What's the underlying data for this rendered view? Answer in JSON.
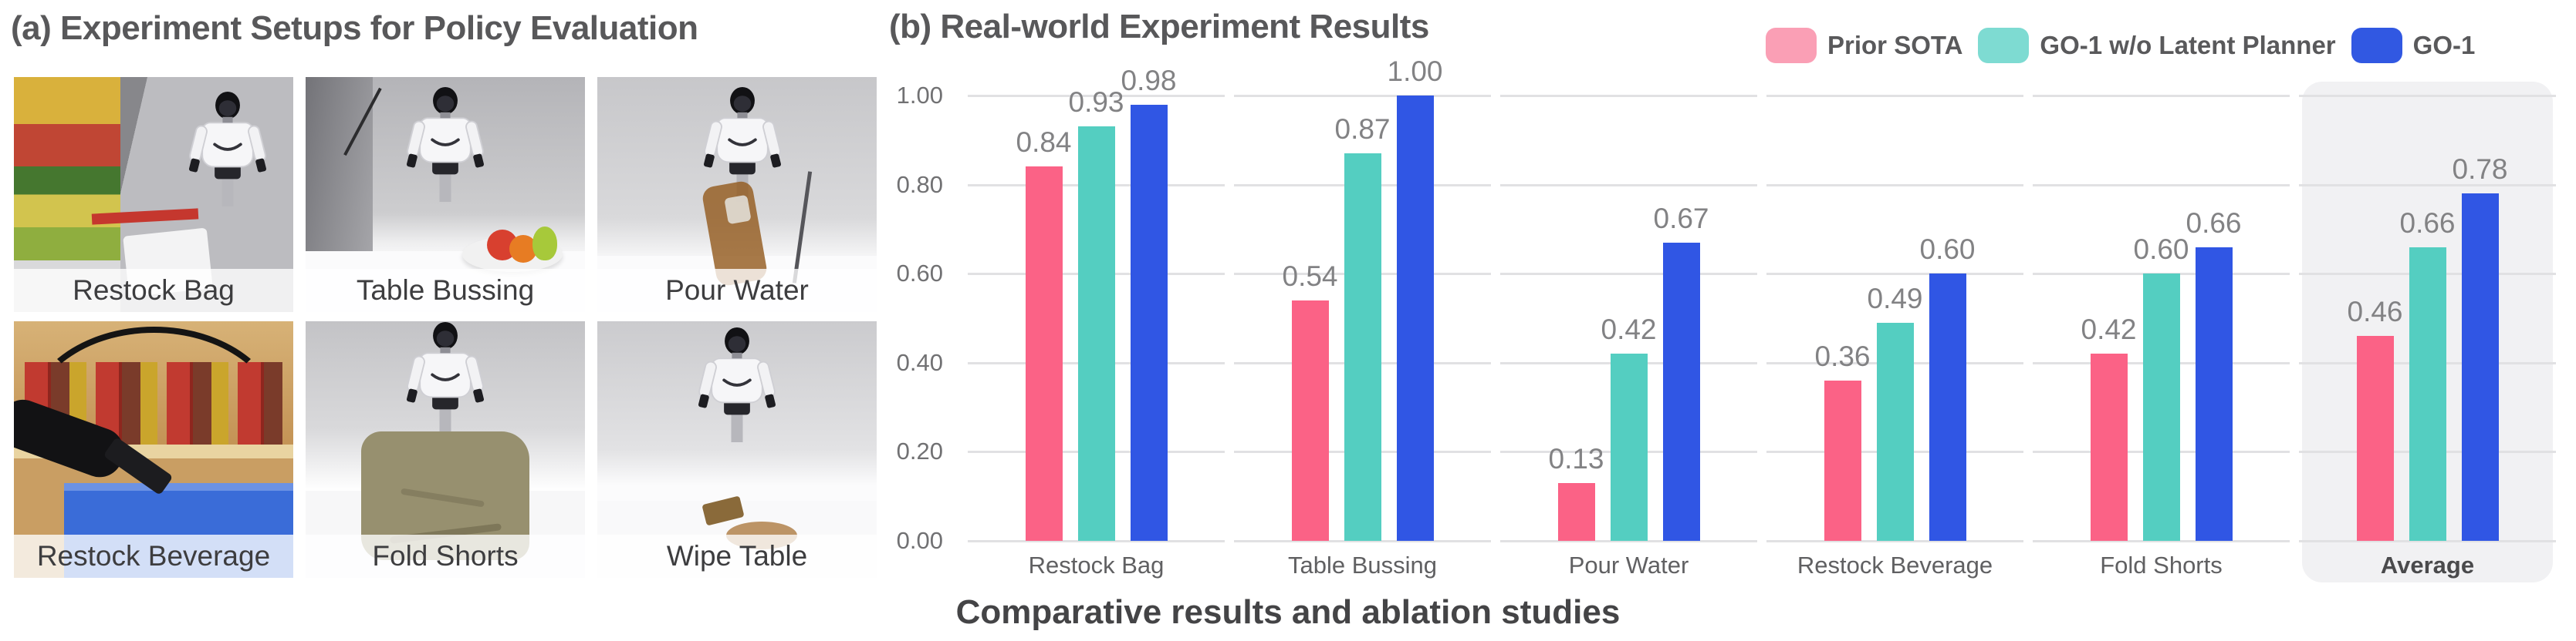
{
  "panel_a": {
    "title": "(a) Experiment Setups for Policy Evaluation",
    "setups": [
      {
        "label": "Restock Bag"
      },
      {
        "label": "Table Bussing"
      },
      {
        "label": "Pour Water"
      },
      {
        "label": "Restock Beverage"
      },
      {
        "label": "Fold Shorts"
      },
      {
        "label": "Wipe Table"
      }
    ]
  },
  "panel_b": {
    "title": "(b) Real-world Experiment Results",
    "caption": "Comparative results and ablation studies",
    "legend": [
      {
        "label": "Prior SOTA",
        "swatch_color": "#FA9FB5"
      },
      {
        "label": "GO-1 w/o Latent Planner",
        "swatch_color": "#7EDBD2"
      },
      {
        "label": "GO-1",
        "swatch_color": "#3158E2"
      }
    ]
  },
  "chart_data": {
    "type": "bar",
    "title": "(b) Real-world Experiment Results",
    "categories": [
      "Restock Bag",
      "Table Bussing",
      "Pour Water",
      "Restock Beverage",
      "Fold Shorts",
      "Average"
    ],
    "series": [
      {
        "name": "Prior SOTA",
        "color": "#FB6286",
        "values": [
          0.84,
          0.54,
          0.13,
          0.36,
          0.42,
          0.46
        ]
      },
      {
        "name": "GO-1 w/o Latent Planner",
        "color": "#54CEC1",
        "values": [
          0.93,
          0.87,
          0.42,
          0.49,
          0.6,
          0.66
        ]
      },
      {
        "name": "GO-1",
        "color": "#3056E4",
        "values": [
          0.98,
          1.0,
          0.67,
          0.6,
          0.66,
          0.78
        ]
      }
    ],
    "xlabel": "",
    "ylabel": "",
    "ylim": [
      0,
      1.0
    ],
    "yticks": [
      "1.00",
      "0.80",
      "0.60",
      "0.40",
      "0.20",
      "0.00"
    ],
    "grid": true,
    "value_labels": true,
    "legend_position": "top-right",
    "highlighted_category": "Average"
  }
}
